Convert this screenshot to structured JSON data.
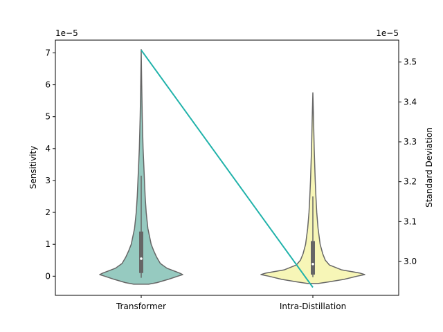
{
  "chart_data": {
    "type": "violin",
    "categories": [
      "Transformer",
      "Intra-Distillation"
    ],
    "ylabel": "Sensitivity",
    "ylabel_right": "Standard Deviation",
    "left_axis": {
      "scale_note": "1e−5",
      "ylim": [
        -0.6,
        7.4
      ],
      "ticks": [
        0,
        1,
        2,
        3,
        4,
        5,
        6,
        7
      ],
      "tick_labels": [
        "0",
        "1",
        "2",
        "3",
        "4",
        "5",
        "6",
        "7"
      ]
    },
    "right_axis": {
      "scale_note": "1e−5",
      "ylim": [
        2.915,
        3.555
      ],
      "ticks": [
        3.0,
        3.1,
        3.2,
        3.3,
        3.4,
        3.5
      ],
      "tick_labels": [
        "3.0",
        "3.1",
        "3.2",
        "3.3",
        "3.4",
        "3.5"
      ]
    },
    "violins": [
      {
        "category": "Transformer",
        "color": "#96cac0",
        "min": -0.25,
        "max": 7.1,
        "q1": 0.1,
        "median": 0.55,
        "q3": 1.4,
        "whisker_low": -0.05,
        "whisker_high": 3.15,
        "max_halfwidth": 0.8,
        "density_x": [
          -0.25,
          -0.2,
          -0.1,
          0.0,
          0.05,
          0.1,
          0.25,
          0.4,
          0.6,
          0.8,
          1.0,
          1.5,
          2.0,
          2.5,
          3.0,
          3.5,
          4.0,
          5.0,
          6.0,
          7.1
        ],
        "density": [
          0.18,
          0.38,
          0.65,
          0.88,
          1.0,
          0.92,
          0.62,
          0.46,
          0.37,
          0.3,
          0.24,
          0.16,
          0.12,
          0.095,
          0.078,
          0.062,
          0.045,
          0.025,
          0.012,
          0.0
        ]
      },
      {
        "category": "Intra-Distillation",
        "color": "#f7f6b7",
        "min": -0.23,
        "max": 5.75,
        "q1": 0.05,
        "median": 0.38,
        "q3": 1.1,
        "whisker_low": -0.03,
        "whisker_high": 2.5,
        "max_halfwidth": 1.0,
        "density_x": [
          -0.23,
          -0.18,
          -0.1,
          0.0,
          0.05,
          0.1,
          0.2,
          0.35,
          0.5,
          0.7,
          1.0,
          1.5,
          2.0,
          2.5,
          3.0,
          4.0,
          5.0,
          5.75
        ],
        "density": [
          0.1,
          0.3,
          0.6,
          0.85,
          1.0,
          0.9,
          0.55,
          0.32,
          0.24,
          0.19,
          0.14,
          0.1,
          0.075,
          0.058,
          0.045,
          0.025,
          0.012,
          0.0
        ]
      }
    ],
    "std_line": {
      "axis": "right",
      "color": "#20b2aa",
      "values": [
        3.53,
        2.935
      ]
    },
    "colors": {
      "violin_edge": "#666666",
      "box": "#666666",
      "median_dot": "#ffffff",
      "axes": "#000000"
    }
  }
}
